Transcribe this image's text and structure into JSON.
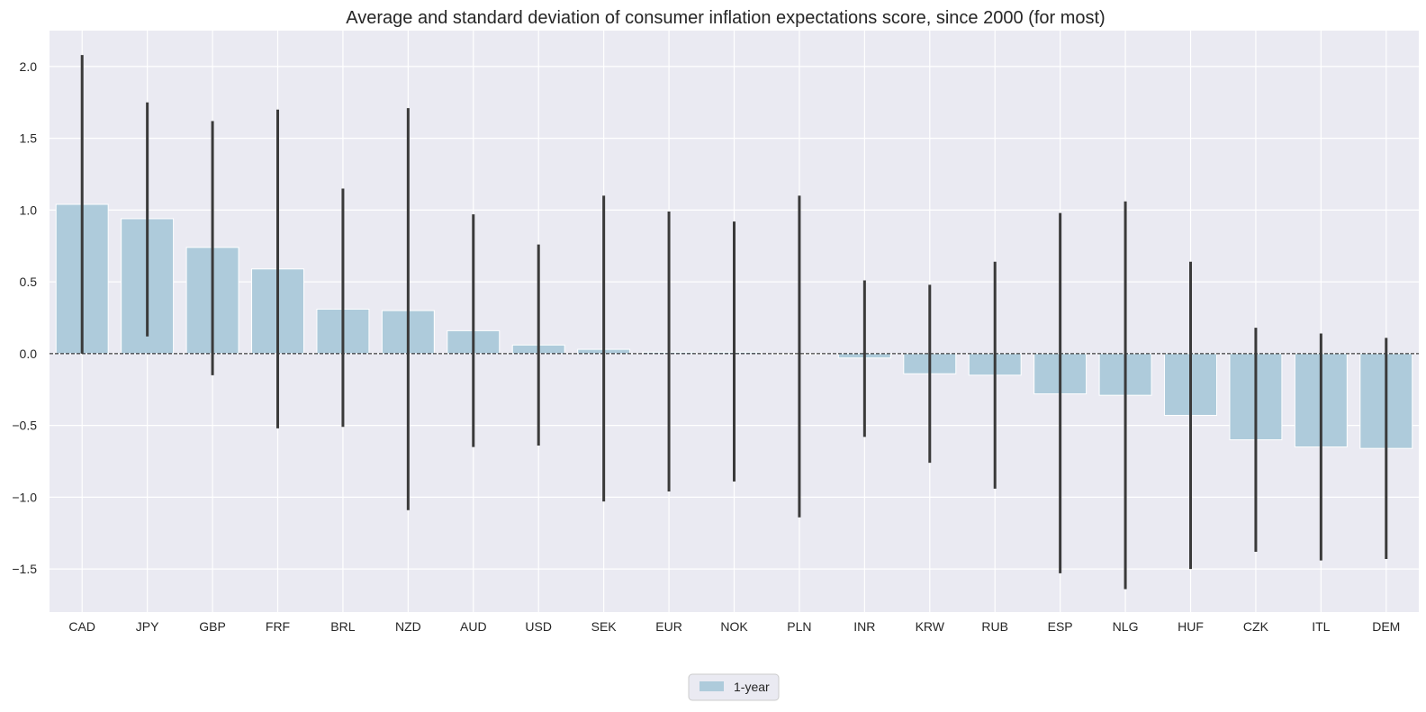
{
  "chart_data": {
    "type": "bar",
    "title": "Average and standard deviation of consumer inflation expectations score, since 2000 (for most)",
    "xlabel": "",
    "ylabel": "",
    "categories": [
      "CAD",
      "JPY",
      "GBP",
      "FRF",
      "BRL",
      "NZD",
      "AUD",
      "USD",
      "SEK",
      "EUR",
      "NOK",
      "PLN",
      "INR",
      "KRW",
      "RUB",
      "ESP",
      "NLG",
      "HUF",
      "CZK",
      "ITL",
      "DEM"
    ],
    "series": [
      {
        "name": "1-year",
        "values": [
          1.04,
          0.94,
          0.74,
          0.59,
          0.31,
          0.3,
          0.16,
          0.06,
          0.03,
          0.01,
          0.01,
          0.0,
          -0.03,
          -0.14,
          -0.15,
          -0.28,
          -0.29,
          -0.43,
          -0.6,
          -0.65,
          -0.66
        ],
        "error_low": [
          0.0,
          0.12,
          -0.15,
          -0.52,
          -0.51,
          -1.09,
          -0.65,
          -0.64,
          -1.03,
          -0.96,
          -0.89,
          -1.14,
          -0.58,
          -0.76,
          -0.94,
          -1.53,
          -1.64,
          -1.5,
          -1.38,
          -1.44,
          -1.43
        ],
        "error_high": [
          2.08,
          1.75,
          1.62,
          1.7,
          1.15,
          1.71,
          0.97,
          0.76,
          1.1,
          0.99,
          0.92,
          1.1,
          0.51,
          0.48,
          0.64,
          0.98,
          1.06,
          0.64,
          0.18,
          0.14,
          0.11
        ]
      }
    ],
    "ylim": [
      -1.8,
      2.25
    ],
    "yticks": [
      -1.5,
      -1.0,
      -0.5,
      0.0,
      0.5,
      1.0,
      1.5,
      2.0
    ],
    "ytick_labels": [
      "−1.5",
      "−1.0",
      "−0.5",
      "0.0",
      "0.5",
      "1.0",
      "1.5",
      "2.0"
    ],
    "grid": true,
    "zero_line": true,
    "legend": {
      "position": "bottom-center",
      "entries": [
        "1-year"
      ]
    },
    "colors": {
      "bar": "#aecbdb",
      "bar_edge": "#ffffff",
      "error_bar": "#3a3a3a",
      "plot_background": "#eaeaf2",
      "grid": "#ffffff",
      "zero_line": "#111111"
    }
  }
}
